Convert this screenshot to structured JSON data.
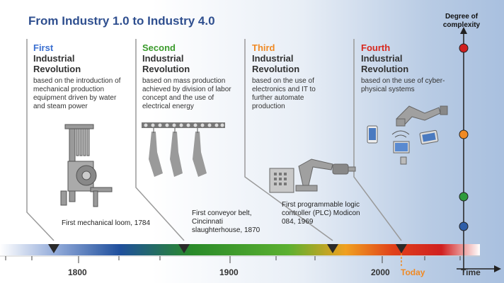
{
  "title": "From Industry 1.0 to Industry 4.0",
  "y_axis_label": "Degree of complexity",
  "x_axis_label": "Time",
  "revolutions": [
    {
      "ordinal": "First",
      "heading": "Industrial Revolution",
      "description": "based on the introduction of  mechanical production equipment driven by water and steam power",
      "color": "#3a6fd0"
    },
    {
      "ordinal": "Second",
      "heading": "Industrial Revolution",
      "description": "based on mass production achieved by division of labor concept and the use of electrical energy",
      "color": "#3b9b2c"
    },
    {
      "ordinal": "Third",
      "heading": "Industrial Revolution",
      "description": "based on the use of electronics and IT to further automate production",
      "color": "#f08a24"
    },
    {
      "ordinal": "Fourth",
      "heading": "Industrial Revolution",
      "description": "based on the use of cyber-physical systems",
      "color": "#d8281e"
    }
  ],
  "milestones": [
    {
      "label": "First mechanical loom, 1784"
    },
    {
      "label": "First conveyor belt, Cincinnati slaughterhouse, 1870"
    },
    {
      "label": "First programmable logic controller (PLC) Modicon 084, 1969"
    }
  ],
  "timeline_labels": [
    "1800",
    "1900",
    "2000",
    "Today"
  ],
  "complexity_dot_colors": [
    "#2e5ea8",
    "#2e9b3c",
    "#f08a24",
    "#d01f1f"
  ]
}
